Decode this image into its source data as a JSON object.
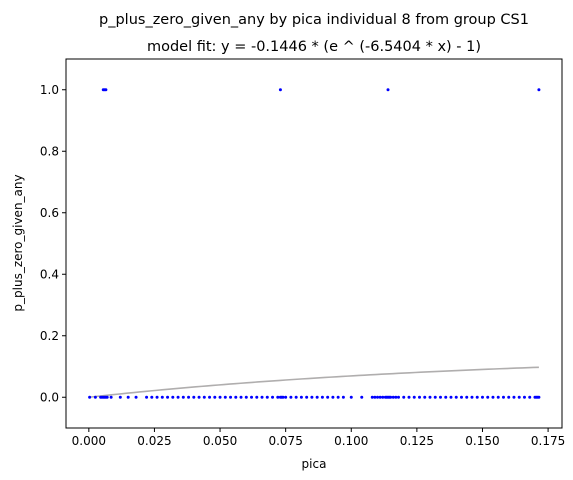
{
  "chart_data": {
    "type": "scatter",
    "title": "p_plus_zero_given_any by pica individual 8 from group CS1",
    "subtitle": "model fit: y = -0.1446 * (e ^ (-6.5404 * x) - 1)",
    "xlabel": "pica",
    "ylabel": "p_plus_zero_given_any",
    "xlim": [
      -0.0087,
      0.1803
    ],
    "ylim": [
      -0.1,
      1.1
    ],
    "grid": false,
    "x_ticks": [
      "0.000",
      "0.025",
      "0.050",
      "0.075",
      "0.100",
      "0.125",
      "0.150",
      "0.175"
    ],
    "y_ticks": [
      "0.0",
      "0.2",
      "0.4",
      "0.6",
      "0.8",
      "1.0"
    ],
    "x_tick_values": [
      0.0,
      0.025,
      0.05,
      0.075,
      0.1,
      0.125,
      0.15,
      0.175
    ],
    "y_tick_values": [
      0.0,
      0.2,
      0.4,
      0.6,
      0.8,
      1.0
    ],
    "series": [
      {
        "color": "#0000ff",
        "marker": "dot",
        "points": [
          [
            0.0055,
            1
          ],
          [
            0.006,
            1
          ],
          [
            0.0065,
            1
          ],
          [
            0.073,
            1
          ],
          [
            0.114,
            1
          ],
          [
            0.1715,
            1
          ],
          [
            0.0003,
            0
          ],
          [
            0.0025,
            0
          ],
          [
            0.0045,
            0
          ],
          [
            0.005,
            0
          ],
          [
            0.0055,
            0
          ],
          [
            0.006,
            0
          ],
          [
            0.0065,
            0
          ],
          [
            0.007,
            0
          ],
          [
            0.0085,
            0
          ],
          [
            0.012,
            0
          ],
          [
            0.015,
            0
          ],
          [
            0.018,
            0
          ],
          [
            0.022,
            0
          ],
          [
            0.024,
            0
          ],
          [
            0.026,
            0
          ],
          [
            0.028,
            0
          ],
          [
            0.03,
            0
          ],
          [
            0.032,
            0
          ],
          [
            0.034,
            0
          ],
          [
            0.036,
            0
          ],
          [
            0.038,
            0
          ],
          [
            0.04,
            0
          ],
          [
            0.042,
            0
          ],
          [
            0.044,
            0
          ],
          [
            0.046,
            0
          ],
          [
            0.048,
            0
          ],
          [
            0.05,
            0
          ],
          [
            0.052,
            0
          ],
          [
            0.054,
            0
          ],
          [
            0.056,
            0
          ],
          [
            0.058,
            0
          ],
          [
            0.06,
            0
          ],
          [
            0.062,
            0
          ],
          [
            0.064,
            0
          ],
          [
            0.066,
            0
          ],
          [
            0.068,
            0
          ],
          [
            0.07,
            0
          ],
          [
            0.072,
            0
          ],
          [
            0.073,
            0
          ],
          [
            0.0735,
            0
          ],
          [
            0.074,
            0
          ],
          [
            0.075,
            0
          ],
          [
            0.077,
            0
          ],
          [
            0.079,
            0
          ],
          [
            0.081,
            0
          ],
          [
            0.083,
            0
          ],
          [
            0.085,
            0
          ],
          [
            0.087,
            0
          ],
          [
            0.089,
            0
          ],
          [
            0.091,
            0
          ],
          [
            0.093,
            0
          ],
          [
            0.095,
            0
          ],
          [
            0.097,
            0
          ],
          [
            0.1,
            0
          ],
          [
            0.104,
            0
          ],
          [
            0.108,
            0
          ],
          [
            0.109,
            0
          ],
          [
            0.11,
            0
          ],
          [
            0.111,
            0
          ],
          [
            0.112,
            0
          ],
          [
            0.113,
            0
          ],
          [
            0.1135,
            0
          ],
          [
            0.114,
            0
          ],
          [
            0.1145,
            0
          ],
          [
            0.115,
            0
          ],
          [
            0.116,
            0
          ],
          [
            0.117,
            0
          ],
          [
            0.118,
            0
          ],
          [
            0.12,
            0
          ],
          [
            0.122,
            0
          ],
          [
            0.124,
            0
          ],
          [
            0.126,
            0
          ],
          [
            0.128,
            0
          ],
          [
            0.13,
            0
          ],
          [
            0.132,
            0
          ],
          [
            0.134,
            0
          ],
          [
            0.136,
            0
          ],
          [
            0.138,
            0
          ],
          [
            0.14,
            0
          ],
          [
            0.142,
            0
          ],
          [
            0.144,
            0
          ],
          [
            0.146,
            0
          ],
          [
            0.148,
            0
          ],
          [
            0.15,
            0
          ],
          [
            0.152,
            0
          ],
          [
            0.154,
            0
          ],
          [
            0.156,
            0
          ],
          [
            0.158,
            0
          ],
          [
            0.16,
            0
          ],
          [
            0.162,
            0
          ],
          [
            0.164,
            0
          ],
          [
            0.166,
            0
          ],
          [
            0.168,
            0
          ],
          [
            0.17,
            0
          ],
          [
            0.1705,
            0
          ],
          [
            0.171,
            0
          ],
          [
            0.1715,
            0
          ]
        ]
      },
      {
        "color": "#b0aeae",
        "type": "line",
        "fit": {
          "a": -0.1446,
          "b": -6.5404,
          "x_range": [
            0.0,
            0.1715
          ]
        }
      }
    ]
  }
}
